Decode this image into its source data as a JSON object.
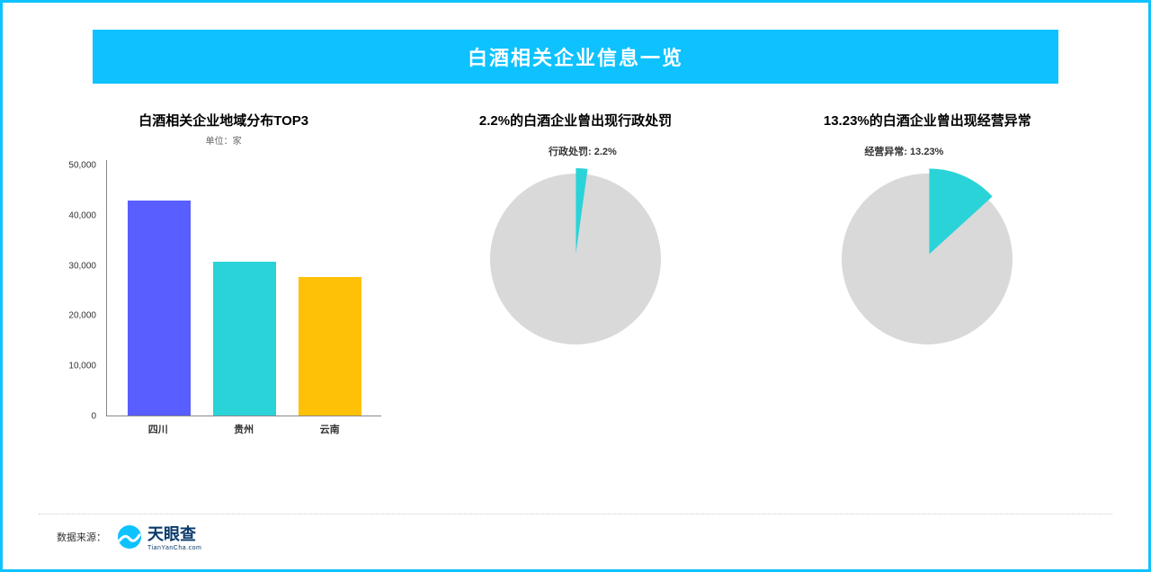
{
  "frame": {
    "border_color": "#0dc2ff",
    "background": "#ffffff"
  },
  "title_bar": {
    "text": "白酒相关企业信息一览",
    "background": "#0dc2ff",
    "text_color": "#ffffff",
    "fontsize": 22
  },
  "bar_chart": {
    "type": "bar",
    "title": "白酒相关企业地域分布TOP3",
    "subtitle": "单位：家",
    "categories": [
      "四川",
      "贵州",
      "云南"
    ],
    "values": [
      42000,
      30000,
      27000
    ],
    "bar_colors": [
      "#585eff",
      "#2ad3d8",
      "#ffc107"
    ],
    "ylim": [
      0,
      50000
    ],
    "ytick_step": 10000,
    "ytick_labels": [
      "0",
      "10,000",
      "20,000",
      "30,000",
      "40,000",
      "50,000"
    ],
    "axis_color": "#888888",
    "label_color": "#333333",
    "title_fontsize": 15,
    "label_fontsize": 11,
    "bar_width": 0.7
  },
  "pie1": {
    "type": "pie",
    "title": "2.2%的白酒企业曾出现行政处罚",
    "slice_label": "行政处罚: 2.2%",
    "slice_value": 2.2,
    "rest_value": 97.8,
    "slice_color": "#2ad3d8",
    "rest_color": "#d9d9d9",
    "title_fontsize": 15,
    "label_fontsize": 11,
    "radius": 95
  },
  "pie2": {
    "type": "pie",
    "title": "13.23%的白酒企业曾出现经营异常",
    "slice_label": "经营异常: 13.23%",
    "slice_value": 13.23,
    "rest_value": 86.77,
    "slice_color": "#2ad3d8",
    "rest_color": "#d9d9d9",
    "title_fontsize": 15,
    "label_fontsize": 11,
    "radius": 95
  },
  "footer": {
    "source_label": "数据来源：",
    "logo_text": "天眼查",
    "logo_sub": "TianYanCha.com",
    "logo_icon_color": "#0dc2ff"
  }
}
